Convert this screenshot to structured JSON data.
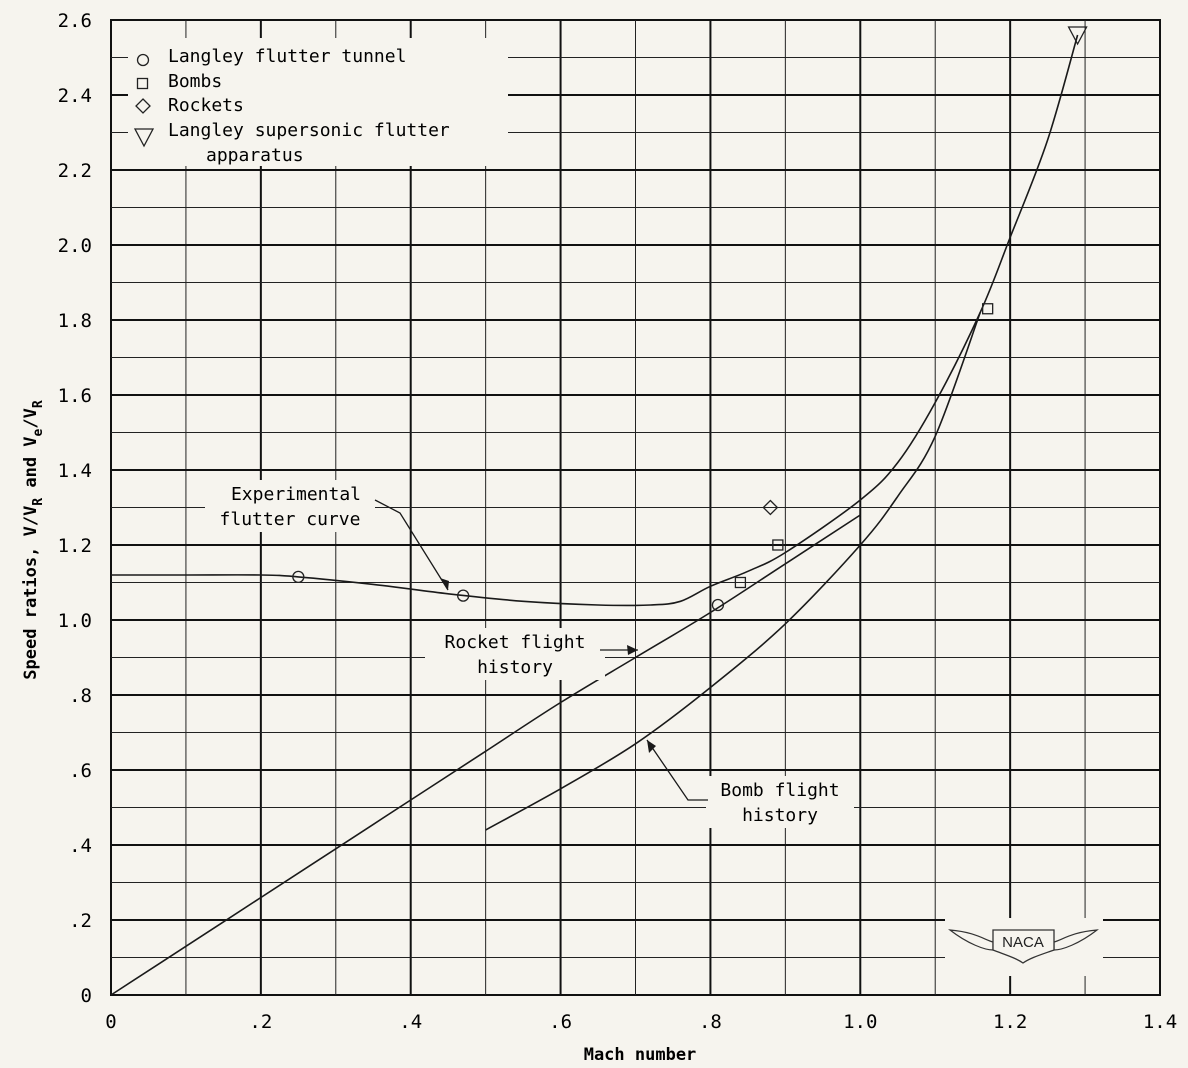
{
  "chart_data": {
    "type": "line",
    "xlabel": "Mach number",
    "ylabel_parts": {
      "prefix": "Speed ratios, V/V",
      "sub1": "R",
      "mid": " and V",
      "sub2": "e",
      "mid2": "/V",
      "sub3": "R"
    },
    "xlim": [
      0,
      1.4
    ],
    "ylim": [
      0,
      2.6
    ],
    "x_ticks": [
      {
        "value": 0,
        "label": "0"
      },
      {
        "value": 0.2,
        "label": ".2"
      },
      {
        "value": 0.4,
        "label": ".4"
      },
      {
        "value": 0.6,
        "label": ".6"
      },
      {
        "value": 0.8,
        "label": ".8"
      },
      {
        "value": 1.0,
        "label": "1.0"
      },
      {
        "value": 1.2,
        "label": "1.2"
      },
      {
        "value": 1.4,
        "label": "1.4"
      }
    ],
    "y_ticks": [
      {
        "value": 0,
        "label": "0"
      },
      {
        "value": 0.2,
        "label": ".2"
      },
      {
        "value": 0.4,
        "label": ".4"
      },
      {
        "value": 0.6,
        "label": ".6"
      },
      {
        "value": 0.8,
        "label": ".8"
      },
      {
        "value": 1.0,
        "label": "1.0"
      },
      {
        "value": 1.2,
        "label": "1.2"
      },
      {
        "value": 1.4,
        "label": "1.4"
      },
      {
        "value": 1.6,
        "label": "1.6"
      },
      {
        "value": 1.8,
        "label": "1.8"
      },
      {
        "value": 2.0,
        "label": "2.0"
      },
      {
        "value": 2.2,
        "label": "2.2"
      },
      {
        "value": 2.4,
        "label": "2.4"
      },
      {
        "value": 2.6,
        "label": "2.6"
      }
    ],
    "grid": true,
    "legend_position": "top-left",
    "legend": [
      {
        "marker": "circle",
        "label": "Langley flutter tunnel"
      },
      {
        "marker": "square",
        "label": "Bombs"
      },
      {
        "marker": "diamond",
        "label": "Rockets"
      },
      {
        "marker": "triangle",
        "label": "Langley supersonic flutter",
        "label2": "apparatus"
      }
    ],
    "series": [
      {
        "label": "Experimental flutter curve",
        "points": [
          [
            0,
            1.12
          ],
          [
            0.1,
            1.12
          ],
          [
            0.2,
            1.12
          ],
          [
            0.25,
            1.115
          ],
          [
            0.35,
            1.095
          ],
          [
            0.45,
            1.07
          ],
          [
            0.55,
            1.05
          ],
          [
            0.65,
            1.04
          ],
          [
            0.72,
            1.04
          ],
          [
            0.76,
            1.05
          ],
          [
            0.8,
            1.09
          ],
          [
            0.85,
            1.13
          ],
          [
            0.9,
            1.18
          ],
          [
            1.0,
            1.32
          ],
          [
            1.05,
            1.42
          ],
          [
            1.1,
            1.58
          ],
          [
            1.16,
            1.82
          ],
          [
            1.2,
            2.02
          ],
          [
            1.25,
            2.28
          ],
          [
            1.29,
            2.56
          ]
        ]
      },
      {
        "label": "Rocket flight history",
        "points": [
          [
            0,
            0
          ],
          [
            0.1,
            0.13
          ],
          [
            0.2,
            0.26
          ],
          [
            0.3,
            0.39
          ],
          [
            0.4,
            0.52
          ],
          [
            0.5,
            0.65
          ],
          [
            0.6,
            0.78
          ],
          [
            0.7,
            0.9
          ],
          [
            0.8,
            1.02
          ],
          [
            0.9,
            1.15
          ],
          [
            1.0,
            1.28
          ]
        ]
      },
      {
        "label": "Bomb flight history",
        "points": [
          [
            0.5,
            0.44
          ],
          [
            0.6,
            0.55
          ],
          [
            0.7,
            0.67
          ],
          [
            0.8,
            0.82
          ],
          [
            0.9,
            0.99
          ],
          [
            1.0,
            1.2
          ],
          [
            1.05,
            1.33
          ],
          [
            1.1,
            1.49
          ],
          [
            1.16,
            1.82
          ]
        ]
      }
    ],
    "markers": {
      "circle": [
        [
          0.25,
          1.115
        ],
        [
          0.47,
          1.065
        ],
        [
          0.81,
          1.04
        ]
      ],
      "square": [
        [
          0.84,
          1.1
        ],
        [
          0.89,
          1.2
        ],
        [
          1.17,
          1.83
        ]
      ],
      "diamond": [
        [
          0.88,
          1.3
        ]
      ],
      "triangle": [
        [
          1.29,
          2.56
        ]
      ]
    },
    "annotations": [
      {
        "line1": "Experimental",
        "line2": "flutter curve"
      },
      {
        "line1": "Rocket flight",
        "line2": "history"
      },
      {
        "line1": "Bomb flight",
        "line2": "history"
      }
    ],
    "logo_text": "NACA"
  }
}
